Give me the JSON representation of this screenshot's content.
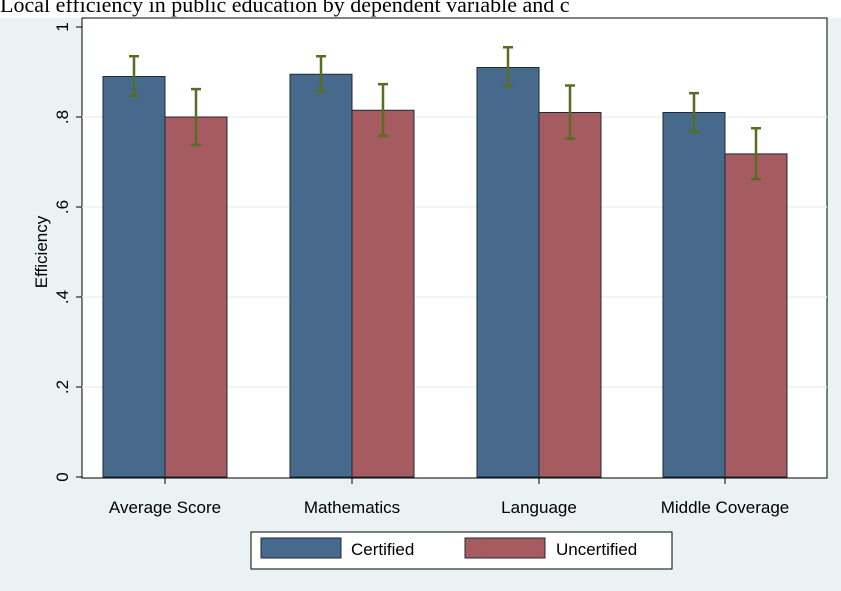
{
  "title": "Local efficiency in public education by dependent variable and c",
  "chart_data": {
    "type": "bar",
    "categories": [
      "Average Score",
      "Mathematics",
      "Language",
      "Middle Coverage"
    ],
    "series": [
      {
        "name": "Certified",
        "values": [
          0.89,
          0.895,
          0.91,
          0.81
        ],
        "ci_low": [
          0.847,
          0.857,
          0.868,
          0.767
        ],
        "ci_high": [
          0.935,
          0.935,
          0.955,
          0.853
        ]
      },
      {
        "name": "Uncertified",
        "values": [
          0.8,
          0.815,
          0.81,
          0.718
        ],
        "ci_low": [
          0.738,
          0.758,
          0.752,
          0.662
        ],
        "ci_high": [
          0.862,
          0.873,
          0.87,
          0.775
        ]
      }
    ],
    "ylabel": "Efficiency",
    "xlabel": "",
    "ylim": [
      0,
      1
    ],
    "yticks": [
      0,
      0.2,
      0.4,
      0.6,
      0.8,
      1
    ],
    "ytick_labels": [
      "0",
      ".2",
      ".4",
      ".6",
      ".8",
      "1"
    ],
    "grid": true,
    "legend_position": "bottom",
    "colors": {
      "Certified": "#476a8c",
      "Uncertified": "#a65b60",
      "error_bar": "#576d21",
      "background": "#eaf2f3",
      "plot_background": "#ffffff",
      "grid": "#eaf2f3"
    }
  }
}
